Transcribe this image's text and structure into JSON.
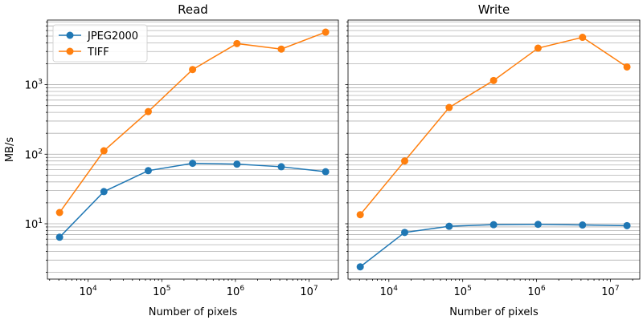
{
  "chart_data": [
    {
      "type": "line",
      "title": "Read",
      "xlabel": "Number of pixels",
      "ylabel": "MB/s",
      "xscale": "log",
      "yscale": "log",
      "xlim": [
        2800,
        25000000
      ],
      "ylim": [
        1.6,
        8500
      ],
      "xticks": [
        10000,
        100000,
        1000000,
        10000000
      ],
      "xtick_labels": [
        [
          "10",
          "4"
        ],
        [
          "10",
          "5"
        ],
        [
          "10",
          "6"
        ],
        [
          "10",
          "7"
        ]
      ],
      "yticks": [
        10,
        100,
        1000
      ],
      "ytick_labels": [
        [
          "10",
          "1"
        ],
        [
          "10",
          "2"
        ],
        [
          "10",
          "3"
        ]
      ],
      "grid": "y-major-and-minor",
      "legend": "top-left",
      "x": [
        4096,
        16384,
        65536,
        262144,
        1048576,
        4194304,
        16777216
      ],
      "series": [
        {
          "name": "JPEG2000",
          "color": "#1f77b4",
          "values": [
            6.4,
            29,
            58,
            74,
            72,
            66,
            56
          ]
        },
        {
          "name": "TIFF",
          "color": "#ff7f0e",
          "values": [
            14.5,
            112,
            410,
            1650,
            3900,
            3250,
            5700
          ]
        }
      ]
    },
    {
      "type": "line",
      "title": "Write",
      "xlabel": "Number of pixels",
      "ylabel": "",
      "xscale": "log",
      "yscale": "log",
      "xlim": [
        2800,
        25000000
      ],
      "ylim": [
        1.6,
        8500
      ],
      "xticks": [
        10000,
        100000,
        1000000,
        10000000
      ],
      "xtick_labels": [
        [
          "10",
          "4"
        ],
        [
          "10",
          "5"
        ],
        [
          "10",
          "6"
        ],
        [
          "10",
          "7"
        ]
      ],
      "yticks": [
        10,
        100,
        1000
      ],
      "ytick_labels": [],
      "grid": "y-major-and-minor",
      "legend": "none",
      "x": [
        4096,
        16384,
        65536,
        262144,
        1048576,
        4194304,
        16777216
      ],
      "series": [
        {
          "name": "JPEG2000",
          "color": "#1f77b4",
          "values": [
            2.4,
            7.5,
            9.2,
            9.7,
            9.8,
            9.6,
            9.4
          ]
        },
        {
          "name": "TIFF",
          "color": "#ff7f0e",
          "values": [
            13.5,
            80,
            470,
            1150,
            3350,
            4800,
            1800
          ]
        }
      ]
    }
  ]
}
